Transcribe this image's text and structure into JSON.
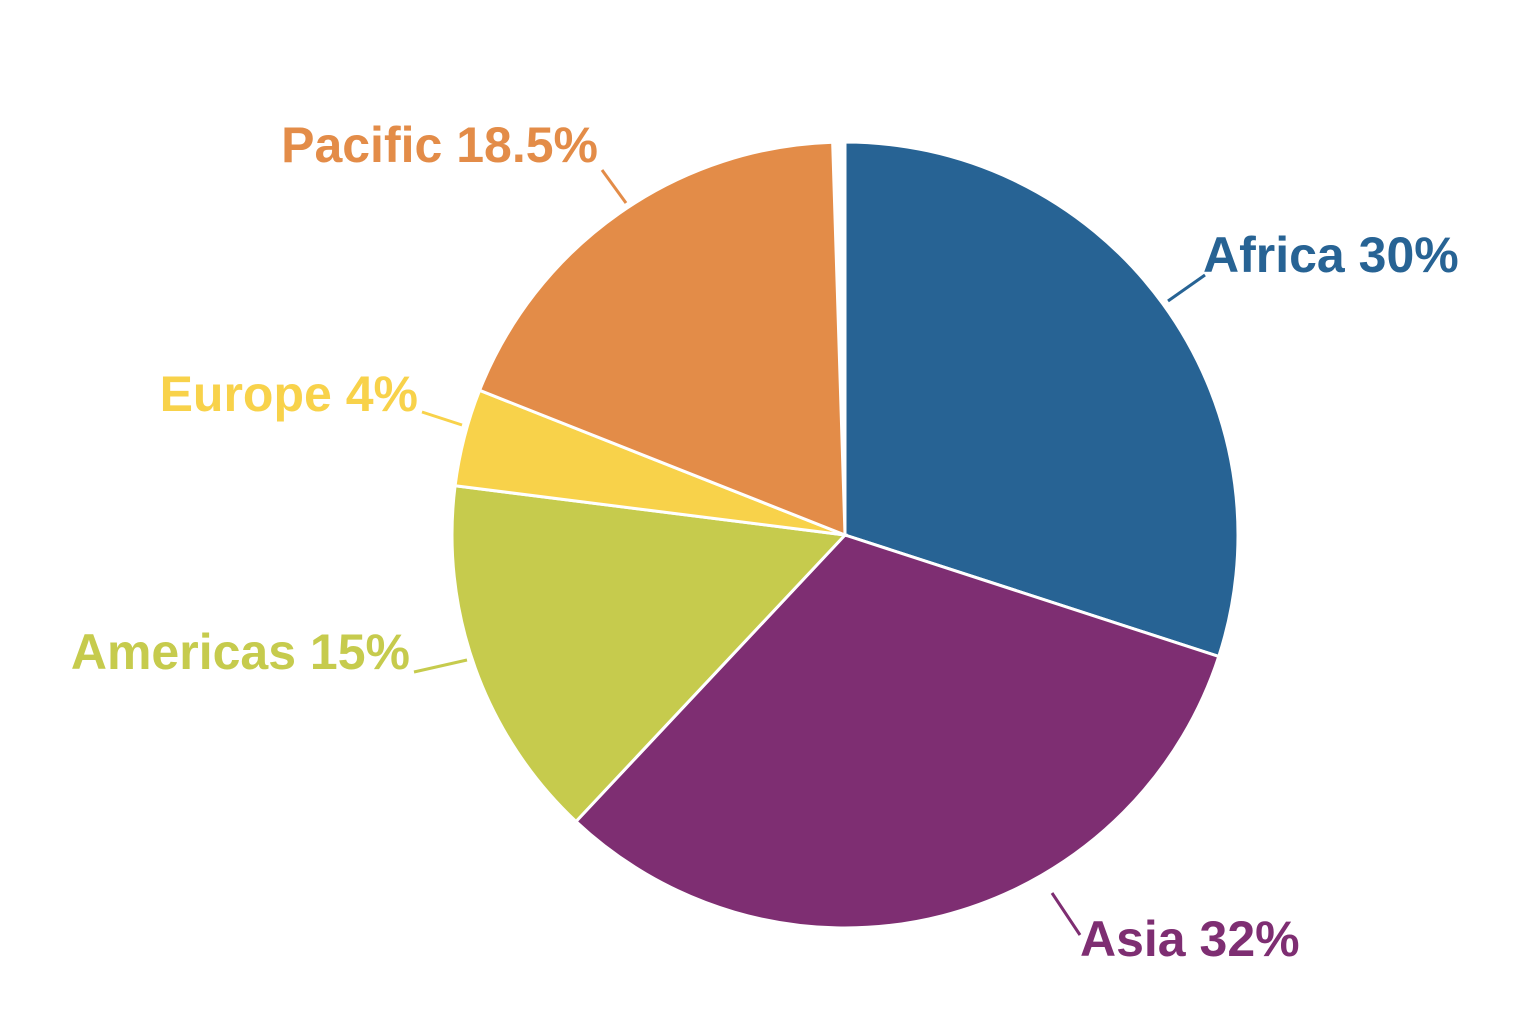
{
  "chart_data": {
    "type": "pie",
    "categories": [
      "Africa",
      "Asia",
      "Americas",
      "Europe",
      "Pacific"
    ],
    "values": [
      30,
      32,
      15,
      4,
      18.5
    ],
    "value_labels": [
      "30%",
      "32%",
      "15%",
      "4%",
      "18.5%"
    ],
    "colors": [
      "#276394",
      "#7e2e72",
      "#c6cb4d",
      "#f8d24a",
      "#e38c48"
    ]
  }
}
